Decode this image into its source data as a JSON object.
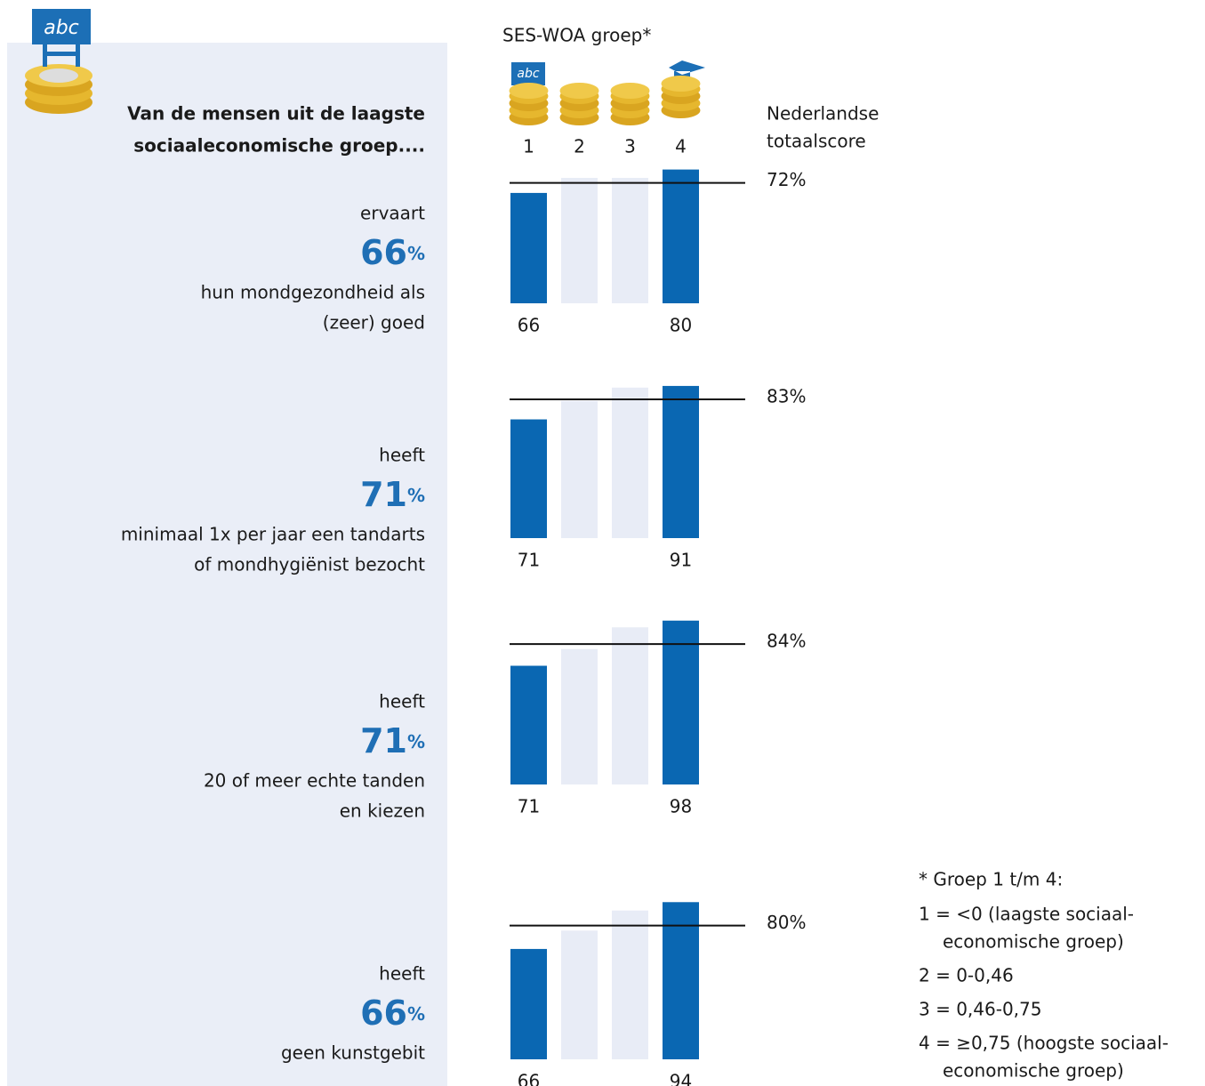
{
  "header": {
    "title_lines": [
      "Van de mensen uit de laagste",
      "sociaaleconomische groep...."
    ]
  },
  "legend_title": "SES-WOA groep*",
  "groups": [
    "1",
    "2",
    "3",
    "4"
  ],
  "reference_title": [
    "Nederlandse",
    "totaalscore"
  ],
  "footnote": {
    "title": "* Groep 1 t/m 4:",
    "items": [
      [
        "1 = <0 (laagste sociaal-",
        "economische groep)"
      ],
      [
        "2 = 0-0,46"
      ],
      [
        "3 = 0,46-0,75"
      ],
      [
        "4 = ≥0,75 (hoogste sociaal-",
        "economische groep)"
      ]
    ]
  },
  "chart_data": [
    {
      "type": "bar",
      "verb": "ervaart",
      "unit": "%",
      "description": [
        "hun mondgezondheid als",
        "(zeer) goed"
      ],
      "values": [
        66,
        75,
        75,
        80
      ],
      "colors": [
        "#0a67b2",
        "#e8ecf6",
        "#e8ecf6",
        "#0a67b2"
      ],
      "ylim": [
        0,
        100
      ],
      "reference": 72,
      "reference_label": "72%"
    },
    {
      "type": "bar",
      "verb": "heeft",
      "unit": "%",
      "description": [
        "minimaal 1x per jaar een tandarts",
        "of mondhygiënist bezocht"
      ],
      "values": [
        71,
        82,
        90,
        91
      ],
      "colors": [
        "#0a67b2",
        "#e8ecf6",
        "#e8ecf6",
        "#0a67b2"
      ],
      "ylim": [
        0,
        100
      ],
      "reference": 83,
      "reference_label": "83%"
    },
    {
      "type": "bar",
      "verb": "heeft",
      "unit": "%",
      "description": [
        "20 of meer echte tanden",
        "en kiezen"
      ],
      "values": [
        71,
        81,
        94,
        98
      ],
      "colors": [
        "#0a67b2",
        "#e8ecf6",
        "#e8ecf6",
        "#0a67b2"
      ],
      "ylim": [
        0,
        100
      ],
      "reference": 84,
      "reference_label": "84%"
    },
    {
      "type": "bar",
      "verb": "heeft",
      "unit": "%",
      "description": [
        "geen kunstgebit"
      ],
      "values": [
        66,
        77,
        89,
        94
      ],
      "colors": [
        "#0a67b2",
        "#e8ecf6",
        "#e8ecf6",
        "#0a67b2"
      ],
      "ylim": [
        0,
        100
      ],
      "reference": 80,
      "reference_label": "80%"
    }
  ]
}
